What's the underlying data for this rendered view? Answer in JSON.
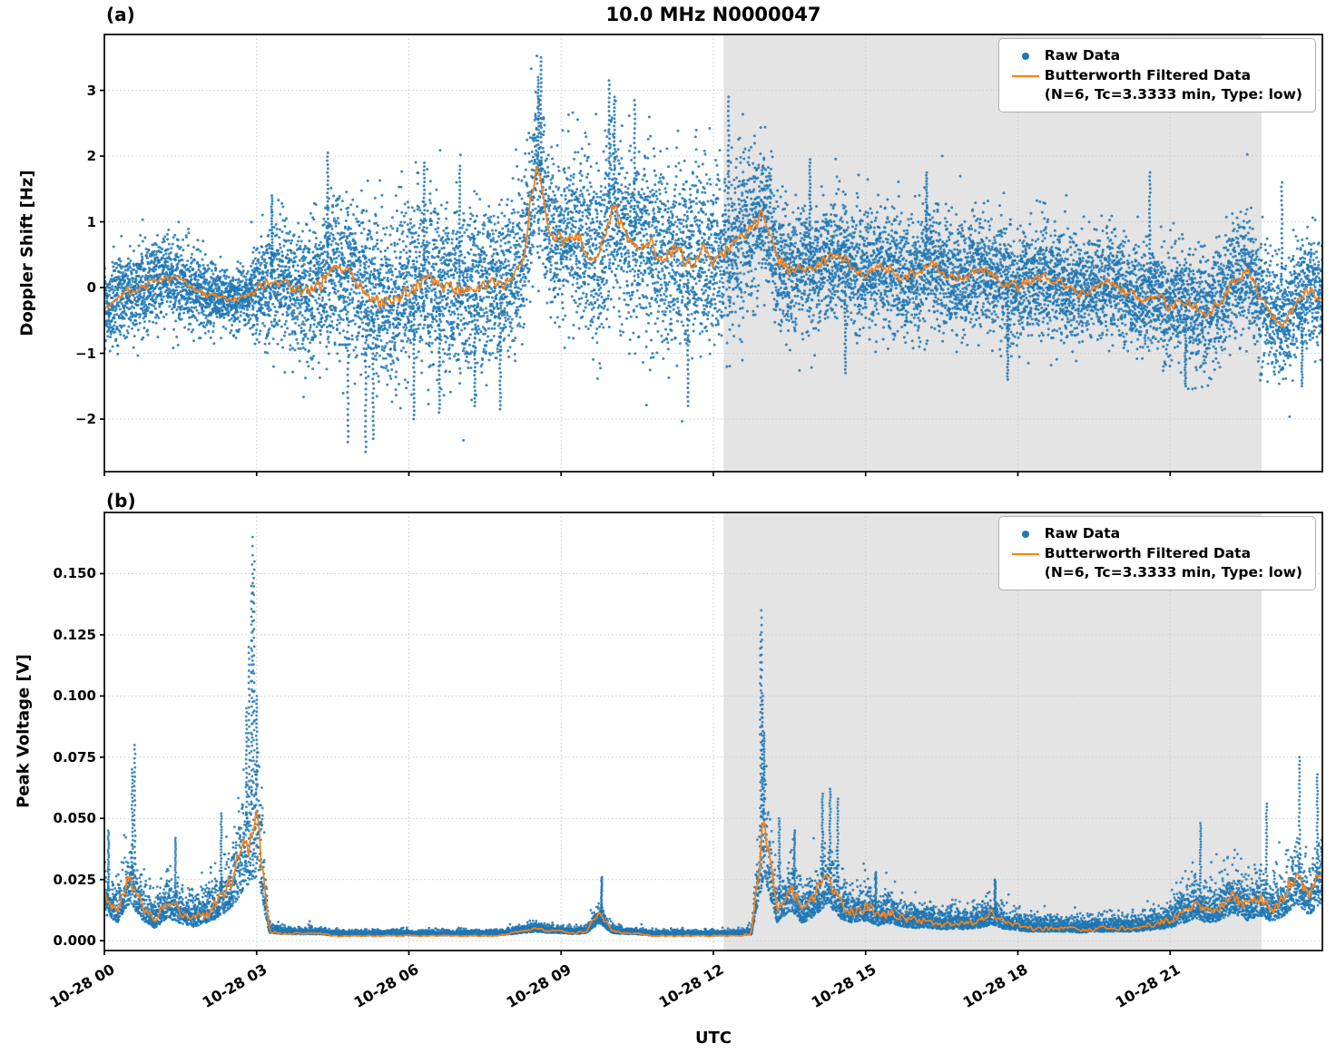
{
  "title": "10.0 MHz N0000047",
  "panel_a_tag": "(a)",
  "panel_b_tag": "(b)",
  "xlabel": "UTC",
  "legend": {
    "raw_label": "Raw Data",
    "filtered_label": "Butterworth Filtered Data",
    "filtered_params": "(N=6, Tc=3.3333 min, Type: low)"
  },
  "colors": {
    "raw": "#1f77b4",
    "filtered": "#ff7f0e",
    "shade": "#e4e4e4",
    "grid": "#c9c9c9",
    "axis": "#000000"
  },
  "chart_data": [
    {
      "panel": "a",
      "type": "scatter",
      "title": "10.0 MHz N0000047",
      "ylabel": "Doppler Shift [Hz]",
      "ylim": [
        -2.8,
        3.85
      ],
      "ytick_values": [
        -2,
        -1,
        0,
        1,
        2,
        3
      ],
      "ytick_labels": [
        "−2",
        "−1",
        "0",
        "1",
        "2",
        "3"
      ],
      "xlim_hours": [
        0,
        24
      ],
      "xtick_hours": [
        0,
        3,
        6,
        9,
        12,
        15,
        18,
        21
      ],
      "shade_span_hours": [
        12.2,
        22.8
      ],
      "series": [
        {
          "name": "Raw Data",
          "style": "scatter",
          "color": "#1f77b4"
        },
        {
          "name": "Butterworth Filtered Data (N=6, Tc=3.3333 min, Type: low)",
          "style": "line",
          "color": "#ff7f0e"
        }
      ],
      "t_step_hours": 0.25,
      "filtered": [
        -0.3,
        -0.15,
        -0.05,
        0.0,
        0.1,
        0.15,
        0.1,
        0.0,
        -0.1,
        -0.15,
        -0.2,
        -0.15,
        -0.05,
        0.05,
        0.1,
        0.0,
        -0.1,
        0.05,
        0.25,
        0.3,
        0.05,
        -0.15,
        -0.25,
        -0.2,
        -0.05,
        0.05,
        0.1,
        0.0,
        -0.05,
        0.0,
        0.05,
        0.05,
        0.1,
        0.35,
        1.9,
        0.9,
        0.7,
        0.85,
        0.6,
        0.4,
        1.25,
        0.9,
        0.55,
        0.65,
        0.4,
        0.6,
        0.35,
        0.55,
        0.4,
        0.6,
        0.75,
        0.95,
        1.15,
        0.45,
        0.25,
        0.35,
        0.25,
        0.45,
        0.5,
        0.3,
        0.2,
        0.35,
        0.25,
        0.15,
        0.2,
        0.4,
        0.25,
        0.1,
        0.15,
        0.3,
        0.2,
        0.1,
        0.0,
        0.1,
        0.15,
        0.1,
        0.0,
        -0.1,
        0.0,
        0.1,
        0.0,
        -0.1,
        -0.2,
        -0.1,
        -0.3,
        -0.2,
        -0.3,
        -0.4,
        -0.2,
        0.1,
        0.3,
        -0.1,
        -0.4,
        -0.6,
        -0.2,
        0.0,
        -0.2
      ],
      "raw_spread": [
        0.3,
        0.32,
        0.33,
        0.33,
        0.33,
        0.32,
        0.3,
        0.3,
        0.28,
        0.25,
        0.22,
        0.22,
        0.4,
        0.45,
        0.48,
        0.5,
        0.52,
        0.55,
        0.58,
        0.6,
        0.62,
        0.6,
        0.6,
        0.62,
        0.65,
        0.65,
        0.65,
        0.62,
        0.6,
        0.6,
        0.6,
        0.58,
        0.58,
        0.6,
        0.62,
        0.6,
        0.6,
        0.65,
        0.68,
        0.7,
        0.72,
        0.72,
        0.7,
        0.7,
        0.7,
        0.7,
        0.68,
        0.68,
        0.65,
        0.65,
        0.62,
        0.6,
        0.55,
        0.5,
        0.48,
        0.46,
        0.45,
        0.45,
        0.45,
        0.45,
        0.44,
        0.44,
        0.44,
        0.44,
        0.44,
        0.45,
        0.45,
        0.44,
        0.44,
        0.44,
        0.44,
        0.43,
        0.42,
        0.42,
        0.42,
        0.41,
        0.4,
        0.4,
        0.4,
        0.4,
        0.4,
        0.4,
        0.4,
        0.4,
        0.42,
        0.42,
        0.42,
        0.42,
        0.43,
        0.43,
        0.43,
        0.43,
        0.44,
        0.45,
        0.45,
        0.45,
        0.45
      ],
      "raw_extremes": [
        {
          "t": 8.6,
          "y": 3.5
        },
        {
          "t": 8.55,
          "y": 3.2
        },
        {
          "t": 9.95,
          "y": 3.15
        },
        {
          "t": 10.05,
          "y": 2.9
        },
        {
          "t": 10.45,
          "y": 2.85
        },
        {
          "t": 12.3,
          "y": 2.9
        },
        {
          "t": 4.4,
          "y": 2.05
        },
        {
          "t": 6.3,
          "y": 1.9
        },
        {
          "t": 7.0,
          "y": 1.85
        },
        {
          "t": 3.3,
          "y": 1.4
        },
        {
          "t": 13.9,
          "y": 1.95
        },
        {
          "t": 16.2,
          "y": 1.75
        },
        {
          "t": 20.6,
          "y": 1.75
        },
        {
          "t": 23.2,
          "y": 1.6
        },
        {
          "t": 5.15,
          "y": -2.5
        },
        {
          "t": 4.8,
          "y": -2.35
        },
        {
          "t": 5.3,
          "y": -2.3
        },
        {
          "t": 6.1,
          "y": -2.0
        },
        {
          "t": 6.6,
          "y": -1.9
        },
        {
          "t": 7.3,
          "y": -1.8
        },
        {
          "t": 7.8,
          "y": -1.85
        },
        {
          "t": 11.5,
          "y": -1.8
        },
        {
          "t": 14.6,
          "y": -1.3
        },
        {
          "t": 17.8,
          "y": -1.4
        },
        {
          "t": 21.3,
          "y": -1.5
        },
        {
          "t": 23.6,
          "y": -1.5
        }
      ]
    },
    {
      "panel": "b",
      "type": "scatter",
      "ylabel": "Peak Voltage [V]",
      "ylim": [
        -0.004,
        0.175
      ],
      "ytick_values": [
        0.0,
        0.025,
        0.05,
        0.075,
        0.1,
        0.125,
        0.15
      ],
      "ytick_labels": [
        "0.000",
        "0.025",
        "0.050",
        "0.075",
        "0.100",
        "0.125",
        "0.150"
      ],
      "xlim_hours": [
        0,
        24
      ],
      "xtick_hours": [
        0,
        3,
        6,
        9,
        12,
        15,
        18,
        21
      ],
      "xtick_labels": [
        "10-28 00",
        "10-28 03",
        "10-28 06",
        "10-28 09",
        "10-28 12",
        "10-28 15",
        "10-28 18",
        "10-28 21"
      ],
      "shade_span_hours": [
        12.2,
        22.8
      ],
      "series": [
        {
          "name": "Raw Data",
          "style": "scatter",
          "color": "#1f77b4"
        },
        {
          "name": "Butterworth Filtered Data (N=6, Tc=3.3333 min, Type: low)",
          "style": "line",
          "color": "#ff7f0e"
        }
      ],
      "t_step_hours": 0.25,
      "filtered": [
        0.02,
        0.012,
        0.028,
        0.014,
        0.008,
        0.016,
        0.012,
        0.009,
        0.012,
        0.016,
        0.024,
        0.04,
        0.05,
        0.004,
        0.003,
        0.003,
        0.003,
        0.003,
        0.002,
        0.002,
        0.002,
        0.002,
        0.002,
        0.002,
        0.002,
        0.002,
        0.002,
        0.002,
        0.002,
        0.002,
        0.002,
        0.002,
        0.003,
        0.004,
        0.005,
        0.004,
        0.004,
        0.003,
        0.004,
        0.012,
        0.004,
        0.003,
        0.003,
        0.002,
        0.002,
        0.002,
        0.002,
        0.002,
        0.002,
        0.002,
        0.002,
        0.003,
        0.05,
        0.012,
        0.022,
        0.012,
        0.018,
        0.028,
        0.016,
        0.012,
        0.014,
        0.01,
        0.012,
        0.009,
        0.008,
        0.008,
        0.007,
        0.007,
        0.007,
        0.008,
        0.011,
        0.007,
        0.006,
        0.005,
        0.005,
        0.005,
        0.005,
        0.004,
        0.005,
        0.005,
        0.005,
        0.005,
        0.006,
        0.007,
        0.008,
        0.012,
        0.016,
        0.012,
        0.014,
        0.02,
        0.014,
        0.018,
        0.013,
        0.018,
        0.028,
        0.018,
        0.03
      ],
      "raw_spread": [
        0.01,
        0.008,
        0.012,
        0.008,
        0.006,
        0.008,
        0.007,
        0.006,
        0.008,
        0.009,
        0.012,
        0.02,
        0.03,
        0.002,
        0.0015,
        0.0012,
        0.0012,
        0.0012,
        0.001,
        0.001,
        0.001,
        0.001,
        0.001,
        0.001,
        0.001,
        0.001,
        0.001,
        0.001,
        0.001,
        0.001,
        0.001,
        0.001,
        0.0012,
        0.0015,
        0.002,
        0.0015,
        0.0015,
        0.0012,
        0.0015,
        0.004,
        0.0015,
        0.0012,
        0.0012,
        0.001,
        0.001,
        0.001,
        0.001,
        0.001,
        0.001,
        0.001,
        0.001,
        0.0015,
        0.02,
        0.008,
        0.01,
        0.007,
        0.009,
        0.012,
        0.009,
        0.007,
        0.007,
        0.006,
        0.006,
        0.005,
        0.005,
        0.0045,
        0.004,
        0.004,
        0.004,
        0.0045,
        0.005,
        0.004,
        0.0035,
        0.003,
        0.003,
        0.003,
        0.003,
        0.0028,
        0.0028,
        0.0028,
        0.003,
        0.003,
        0.0035,
        0.004,
        0.005,
        0.007,
        0.008,
        0.007,
        0.008,
        0.01,
        0.008,
        0.009,
        0.008,
        0.01,
        0.012,
        0.01,
        0.013
      ],
      "raw_extremes": [
        {
          "t": 2.92,
          "y": 0.165
        },
        {
          "t": 2.95,
          "y": 0.155
        },
        {
          "t": 2.9,
          "y": 0.145
        },
        {
          "t": 2.85,
          "y": 0.12
        },
        {
          "t": 2.8,
          "y": 0.095
        },
        {
          "t": 3.0,
          "y": 0.1
        },
        {
          "t": 0.6,
          "y": 0.08
        },
        {
          "t": 0.55,
          "y": 0.07
        },
        {
          "t": 0.08,
          "y": 0.045
        },
        {
          "t": 1.4,
          "y": 0.042
        },
        {
          "t": 2.3,
          "y": 0.052
        },
        {
          "t": 9.8,
          "y": 0.026
        },
        {
          "t": 12.95,
          "y": 0.135
        },
        {
          "t": 12.93,
          "y": 0.125
        },
        {
          "t": 12.97,
          "y": 0.1
        },
        {
          "t": 13.0,
          "y": 0.085
        },
        {
          "t": 13.3,
          "y": 0.05
        },
        {
          "t": 13.6,
          "y": 0.045
        },
        {
          "t": 14.15,
          "y": 0.06
        },
        {
          "t": 14.3,
          "y": 0.062
        },
        {
          "t": 14.45,
          "y": 0.058
        },
        {
          "t": 15.2,
          "y": 0.028
        },
        {
          "t": 17.55,
          "y": 0.025
        },
        {
          "t": 21.6,
          "y": 0.048
        },
        {
          "t": 22.9,
          "y": 0.056
        },
        {
          "t": 23.55,
          "y": 0.075
        },
        {
          "t": 23.9,
          "y": 0.068
        }
      ]
    }
  ]
}
